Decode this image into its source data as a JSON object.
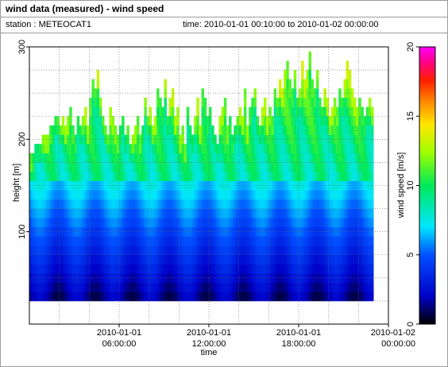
{
  "header": {
    "title": "wind data (measured) - wind speed",
    "station": "station : METEOCAT1",
    "time_range": "time: 2010-01-01 00:10:00 to 2010-01-02 00:00:00"
  },
  "chart_data": {
    "type": "heatmap",
    "title": "wind data (measured) - wind speed",
    "xlabel": "time",
    "ylabel": "height [m]",
    "colorbar_label": "wind speed [m/s]",
    "x_ticks": [
      {
        "line1": "2010-01-01",
        "line2": "06:00:00",
        "hour": 6
      },
      {
        "line1": "2010-01-01",
        "line2": "12:00:00",
        "hour": 12
      },
      {
        "line1": "2010-01-01",
        "line2": "18:00:00",
        "hour": 18
      },
      {
        "line1": "2010-01-02",
        "line2": "00:00:00",
        "hour": 24
      }
    ],
    "xlim_hours": [
      0,
      24
    ],
    "y_ticks": [
      100,
      200,
      300
    ],
    "ylim": [
      0,
      300
    ],
    "colorbar_ticks": [
      0,
      5,
      10,
      15,
      20
    ],
    "color_range": [
      0,
      20
    ],
    "grid": true,
    "time_step_minutes": 10,
    "heights_m": [
      30,
      40,
      50,
      60,
      70,
      80,
      90,
      100,
      110,
      120,
      130,
      140,
      150,
      160,
      170,
      180,
      190,
      200,
      210,
      220,
      230,
      240,
      250,
      260,
      270,
      280,
      290
    ],
    "profile_top_height_m": [
      180,
      180,
      190,
      190,
      190,
      200,
      200,
      200,
      210,
      210,
      220,
      220,
      210,
      220,
      210,
      220,
      230,
      210,
      200,
      220,
      210,
      220,
      230,
      210,
      240,
      260,
      250,
      270,
      240,
      220,
      210,
      200,
      230,
      220,
      210,
      200,
      210,
      220,
      200,
      210,
      190,
      200,
      210,
      220,
      200,
      210,
      240,
      220,
      230,
      210,
      220,
      250,
      240,
      230,
      260,
      220,
      240,
      250,
      220,
      230,
      200,
      210,
      190,
      230,
      210,
      200,
      220,
      240,
      210,
      250,
      240,
      220,
      230,
      210,
      200,
      190,
      220,
      230,
      240,
      210,
      220,
      200,
      210,
      220,
      230,
      220,
      250,
      210,
      230,
      240,
      250,
      220,
      210,
      230,
      240,
      220,
      230,
      220,
      250,
      240,
      260,
      250,
      270,
      280,
      260,
      250,
      270,
      240,
      250,
      280,
      260,
      270,
      290,
      260,
      250,
      270,
      240,
      230,
      250,
      240,
      220,
      230,
      240,
      230,
      250,
      240,
      260,
      280,
      270,
      250,
      240,
      230,
      240,
      230,
      220,
      230,
      240,
      230
    ],
    "notes": "Measured wind-speed profiles (color = wind speed in m/s) at 10-minute steps; speed increases from ~1-3 m/s near the lowest gate to ~8-13 m/s above 150 m; white gaps mark missing values near 40-90 m in the afternoon."
  }
}
